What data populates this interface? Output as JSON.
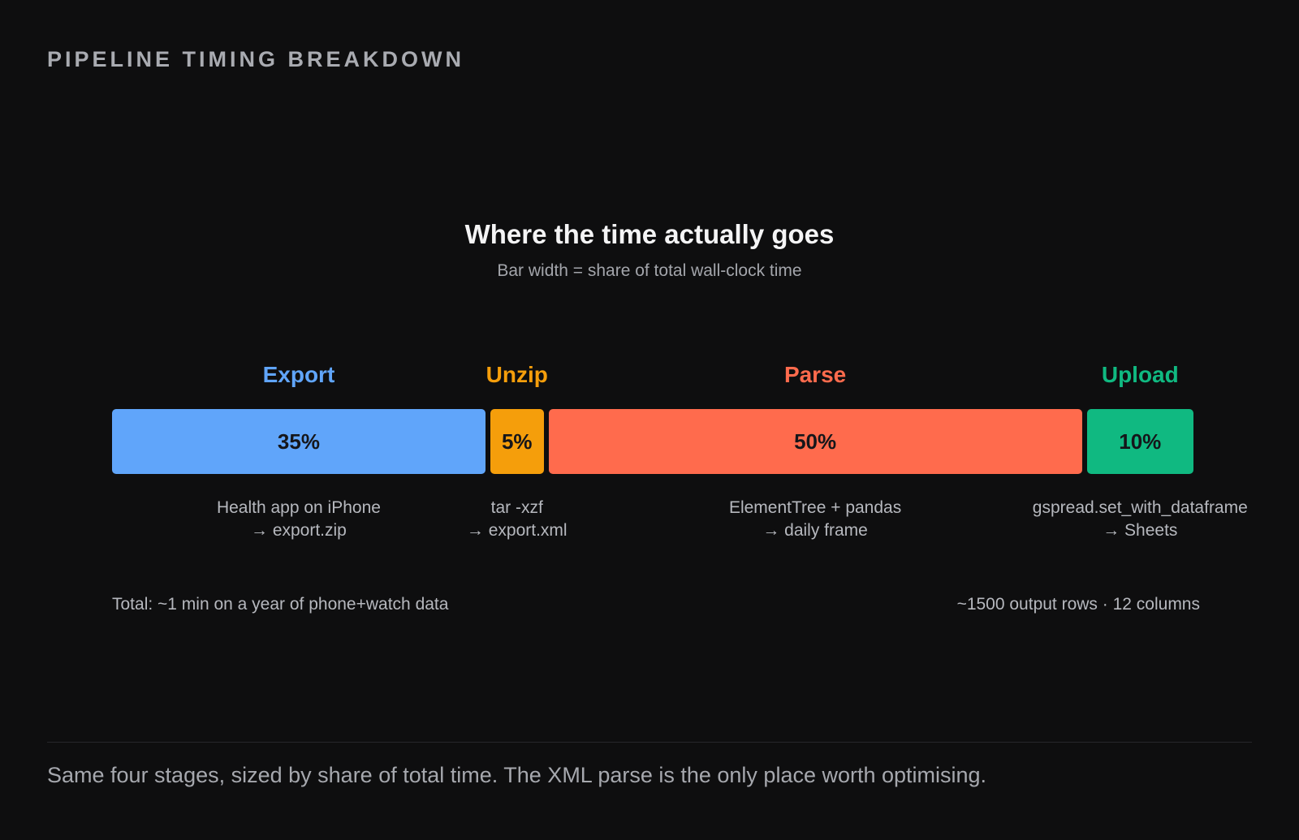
{
  "section_title": "PIPELINE TIMING BREAKDOWN",
  "chart_data": {
    "type": "bar",
    "orientation": "horizontal-stacked",
    "title": "Where the time actually goes",
    "subtitle": "Bar width = share of total wall-clock time",
    "unit": "%",
    "total": 100,
    "stages": [
      {
        "name": "Export",
        "value": 35,
        "label": "35%",
        "color": "#60a5fa",
        "desc": [
          "Health app on iPhone",
          "→ export.zip"
        ]
      },
      {
        "name": "Unzip",
        "value": 5,
        "label": "5%",
        "color": "#f59e0b",
        "desc": [
          "tar -xzf",
          "→ export.xml"
        ]
      },
      {
        "name": "Parse",
        "value": 50,
        "label": "50%",
        "color": "#ff6b4d",
        "desc": [
          "ElementTree + pandas",
          "→ daily frame"
        ]
      },
      {
        "name": "Upload",
        "value": 10,
        "label": "10%",
        "color": "#10b981",
        "desc": [
          "gspread.set_with_dataframe",
          "→ Sheets"
        ]
      }
    ],
    "footer_left": "Total: ~1 min on a year of phone+watch data",
    "footer_right": "~1500 output rows · 12 columns"
  },
  "caption": "Same four stages, sized by share of total time. The XML parse is the only place worth optimising."
}
